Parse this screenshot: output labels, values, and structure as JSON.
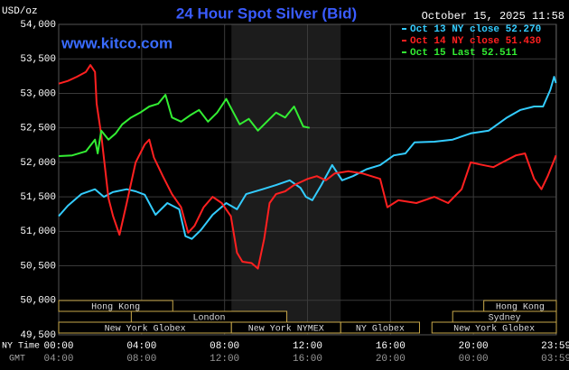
{
  "chart_data": {
    "type": "line",
    "title": "24 Hour Spot Silver (Bid)",
    "date": "October 15, 2025 11:58",
    "watermark": "www.kitco.com",
    "y_label": "USD/oz",
    "x_label": "NY Time",
    "x2_label": "GMT",
    "xlim": [
      0,
      24
    ],
    "ylim": [
      49.5,
      54
    ],
    "grid": true,
    "legend": "upper right",
    "yticks": [
      {
        "value": 49.5,
        "label": "49,500"
      },
      {
        "value": 50,
        "label": "50,000"
      },
      {
        "value": 50.5,
        "label": "50,500"
      },
      {
        "value": 51,
        "label": "51,000"
      },
      {
        "value": 51.5,
        "label": "51,500"
      },
      {
        "value": 52,
        "label": "52,000"
      },
      {
        "value": 52.5,
        "label": "52,500"
      },
      {
        "value": 53,
        "label": "53,000"
      },
      {
        "value": 53.5,
        "label": "53,500"
      },
      {
        "value": 54,
        "label": "54,000"
      }
    ],
    "xticks": [
      {
        "value": 0,
        "label": "00:00"
      },
      {
        "value": 4,
        "label": "04:00"
      },
      {
        "value": 8,
        "label": "08:00"
      },
      {
        "value": 12,
        "label": "12:00"
      },
      {
        "value": 16,
        "label": "16:00"
      },
      {
        "value": 20,
        "label": "20:00"
      },
      {
        "value": 23.983,
        "label": "23:59"
      }
    ],
    "x2ticks": [
      {
        "value": 0,
        "label": "04:00"
      },
      {
        "value": 4,
        "label": "08:00"
      },
      {
        "value": 8,
        "label": "12:00"
      },
      {
        "value": 12,
        "label": "16:00"
      },
      {
        "value": 16,
        "label": "20:00"
      },
      {
        "value": 20,
        "label": "00:00"
      },
      {
        "value": 23.983,
        "label": "03:59"
      }
    ],
    "sessions": [
      {
        "label": "Hong Kong",
        "start": 0,
        "end": 5.5
      },
      {
        "label": "London",
        "start": 3.5,
        "end": 11
      },
      {
        "label": "New York Globex",
        "start": 0,
        "end": 8.33
      },
      {
        "label": "New York NYMEX",
        "start": 8.33,
        "end": 13.6
      },
      {
        "label": "NY Globex",
        "start": 13.6,
        "end": 17.4
      },
      {
        "label": "Hong Kong",
        "start": 20.5,
        "end": 24
      },
      {
        "label": "Sydney",
        "start": 19,
        "end": 24
      },
      {
        "label": "New York Globex",
        "start": 18,
        "end": 24
      }
    ],
    "series": [
      {
        "name": "Oct 13 NY close 52.270",
        "color": "#33ccff",
        "x": [
          0,
          0.44,
          1.09,
          1.75,
          2.18,
          2.62,
          3.28,
          3.71,
          4.15,
          4.67,
          5.24,
          5.81,
          6.11,
          6.42,
          6.86,
          7.42,
          8.08,
          8.6,
          9.04,
          9.83,
          10.48,
          11.14,
          11.66,
          11.92,
          12.23,
          12.66,
          13.19,
          13.67,
          14.19,
          14.85,
          15.5,
          16.16,
          16.72,
          17.16,
          18.12,
          19,
          19.87,
          20.74,
          21.62,
          22.27,
          22.93,
          23.36,
          23.71,
          23.89,
          23.98
        ],
        "values": [
          51.22,
          51.37,
          51.54,
          51.61,
          51.5,
          51.57,
          51.61,
          51.58,
          51.53,
          51.24,
          51.41,
          51.32,
          50.93,
          50.89,
          51.02,
          51.24,
          51.41,
          51.32,
          51.54,
          51.61,
          51.67,
          51.74,
          51.63,
          51.5,
          51.45,
          51.67,
          51.96,
          51.74,
          51.8,
          51.9,
          51.96,
          52.1,
          52.13,
          52.29,
          52.3,
          52.33,
          52.42,
          52.46,
          52.65,
          52.76,
          52.81,
          52.81,
          53.05,
          53.24,
          53.15
        ]
      },
      {
        "name": "Oct 14 NY close 51.430",
        "color": "#ff2020",
        "x": [
          0,
          0.44,
          0.87,
          1.31,
          1.53,
          1.75,
          1.83,
          2.05,
          2.4,
          2.62,
          2.93,
          3.28,
          3.71,
          4.15,
          4.37,
          4.59,
          5.02,
          5.46,
          5.9,
          6.24,
          6.55,
          6.99,
          7.42,
          7.86,
          8.3,
          8.6,
          8.86,
          9.3,
          9.61,
          9.91,
          10.17,
          10.48,
          10.92,
          11.35,
          12.01,
          12.45,
          12.88,
          13.32,
          13.97,
          14.63,
          15.5,
          15.85,
          16.38,
          17.25,
          18.12,
          18.78,
          19.43,
          19.87,
          20.31,
          20.96,
          21.4,
          22.05,
          22.49,
          22.93,
          23.28,
          23.58,
          23.89,
          23.98
        ],
        "values": [
          53.14,
          53.18,
          53.24,
          53.31,
          53.41,
          53.31,
          52.85,
          52.4,
          51.48,
          51.22,
          50.95,
          51.41,
          52,
          52.26,
          52.33,
          52.07,
          51.8,
          51.54,
          51.35,
          50.98,
          51.08,
          51.35,
          51.5,
          51.41,
          51.22,
          50.69,
          50.56,
          50.54,
          50.46,
          50.89,
          51.41,
          51.54,
          51.58,
          51.67,
          51.76,
          51.8,
          51.74,
          51.84,
          51.87,
          51.84,
          51.76,
          51.35,
          51.45,
          51.41,
          51.5,
          51.41,
          51.61,
          52,
          51.97,
          51.93,
          52,
          52.1,
          52.13,
          51.76,
          51.61,
          51.8,
          52.03,
          52.1
        ]
      },
      {
        "name": "Oct 15 Last 52.511",
        "color": "#33ee33",
        "x": [
          0,
          0.65,
          1.31,
          1.75,
          1.88,
          2.05,
          2.4,
          2.75,
          3.06,
          3.49,
          3.93,
          4.37,
          4.8,
          5.15,
          5.46,
          5.9,
          6.33,
          6.77,
          7.2,
          7.64,
          8.08,
          8.43,
          8.73,
          9.17,
          9.61,
          10.04,
          10.48,
          10.92,
          11.35,
          11.79,
          12.1
        ],
        "values": [
          52.09,
          52.1,
          52.16,
          52.33,
          52.13,
          52.46,
          52.33,
          52.42,
          52.55,
          52.65,
          52.72,
          52.81,
          52.85,
          52.98,
          52.65,
          52.59,
          52.68,
          52.76,
          52.59,
          52.72,
          52.92,
          52.72,
          52.55,
          52.63,
          52.46,
          52.59,
          52.72,
          52.65,
          52.81,
          52.52,
          52.5
        ]
      }
    ]
  }
}
